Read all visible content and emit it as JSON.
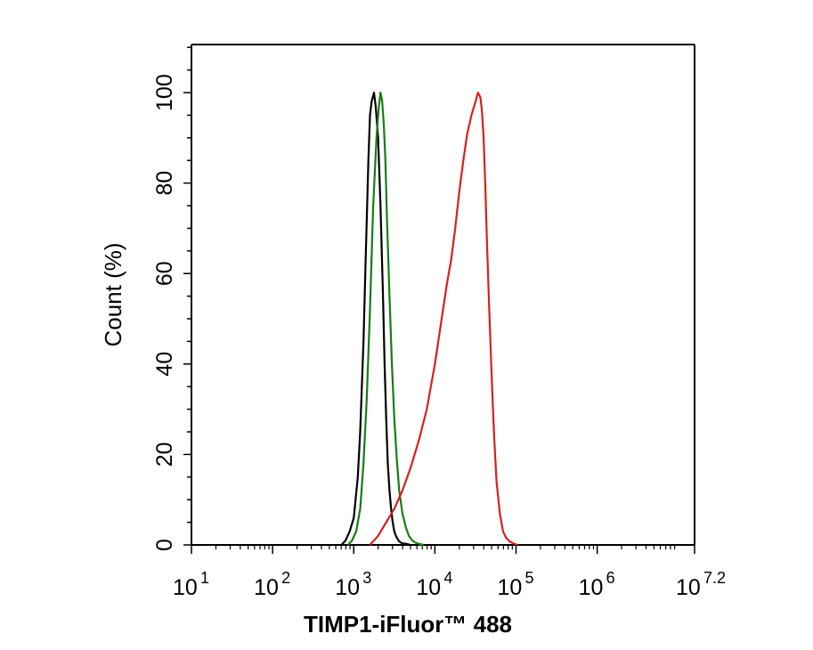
{
  "chart_data": {
    "type": "line",
    "title": "",
    "xlabel": "TIMP1-iFluor™ 488",
    "ylabel": "Count  (%)",
    "xscale": "log",
    "xlim": [
      1,
      7.2
    ],
    "ylim": [
      0,
      100
    ],
    "xticks": [
      {
        "base": "10",
        "exp": "1",
        "value": 1
      },
      {
        "base": "10",
        "exp": "2",
        "value": 2
      },
      {
        "base": "10",
        "exp": "3",
        "value": 3
      },
      {
        "base": "10",
        "exp": "4",
        "value": 4
      },
      {
        "base": "10",
        "exp": "5",
        "value": 5
      },
      {
        "base": "10",
        "exp": "6",
        "value": 6
      },
      {
        "base": "10",
        "exp": "7.2",
        "value": 7.2
      }
    ],
    "yticks": [
      "0",
      "20",
      "40",
      "60",
      "80",
      "100"
    ],
    "grid": false,
    "legend": "none",
    "series": [
      {
        "color": "#000000",
        "x": [
          2.85,
          2.9,
          2.95,
          3.0,
          3.05,
          3.08,
          3.12,
          3.15,
          3.18,
          3.2,
          3.22,
          3.25,
          3.27,
          3.3,
          3.33,
          3.36,
          3.38,
          3.4,
          3.42,
          3.44,
          3.46,
          3.48,
          3.5,
          3.52,
          3.55,
          3.58,
          3.62,
          3.66,
          3.7
        ],
        "y": [
          0,
          1,
          3,
          6,
          15,
          25,
          45,
          65,
          85,
          95,
          98,
          100,
          97,
          90,
          75,
          55,
          40,
          28,
          18,
          12,
          8,
          5,
          3,
          2,
          1,
          0.5,
          0.3,
          0.2,
          0
        ]
      },
      {
        "color": "#1a7a1a",
        "x": [
          2.93,
          2.98,
          3.03,
          3.08,
          3.12,
          3.16,
          3.2,
          3.24,
          3.28,
          3.31,
          3.33,
          3.35,
          3.37,
          3.39,
          3.41,
          3.44,
          3.47,
          3.5,
          3.53,
          3.56,
          3.6,
          3.64,
          3.68,
          3.72,
          3.76,
          3.81,
          3.86
        ],
        "y": [
          0,
          1,
          3,
          8,
          18,
          32,
          52,
          75,
          90,
          97,
          100,
          98,
          93,
          85,
          72,
          55,
          40,
          28,
          19,
          12,
          7,
          4,
          2,
          1,
          0.5,
          0.2,
          0
        ]
      },
      {
        "color": "#d62020",
        "x": [
          3.2,
          3.3,
          3.4,
          3.5,
          3.6,
          3.7,
          3.8,
          3.9,
          4.0,
          4.1,
          4.15,
          4.2,
          4.25,
          4.3,
          4.35,
          4.4,
          4.45,
          4.5,
          4.53,
          4.56,
          4.58,
          4.6,
          4.62,
          4.64,
          4.67,
          4.7,
          4.73,
          4.76,
          4.8,
          4.84,
          4.88,
          4.92,
          4.97,
          5.02
        ],
        "y": [
          0,
          2,
          5,
          8,
          12,
          17,
          23,
          30,
          40,
          52,
          58,
          63,
          70,
          78,
          85,
          91,
          95,
          98,
          100,
          99,
          96,
          90,
          80,
          68,
          52,
          37,
          24,
          14,
          7,
          3,
          1.5,
          0.8,
          0.3,
          0
        ]
      }
    ]
  }
}
